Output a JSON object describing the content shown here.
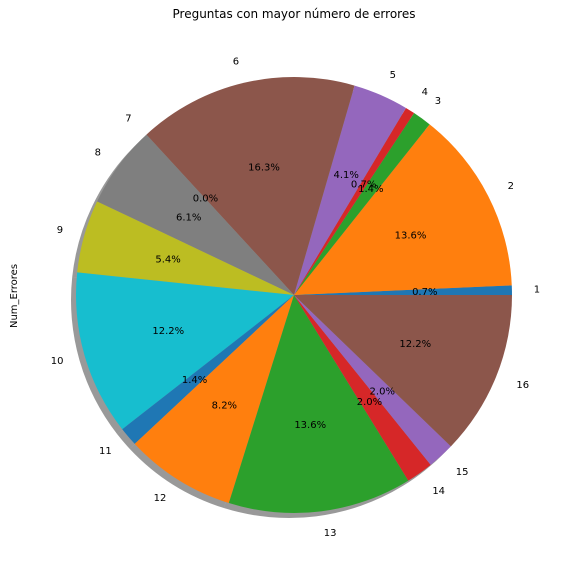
{
  "chart_data": {
    "type": "pie",
    "title": "Preguntas con mayor número de errores",
    "ylabel": "Num_Errores",
    "categories": [
      "1",
      "2",
      "3",
      "4",
      "5",
      "6",
      "7",
      "8",
      "9",
      "10",
      "11",
      "12",
      "13",
      "14",
      "15",
      "16"
    ],
    "values": [
      0.7,
      13.6,
      1.4,
      0.7,
      4.1,
      16.3,
      0.0,
      6.1,
      5.4,
      12.2,
      1.4,
      8.2,
      13.6,
      2.0,
      2.0,
      12.2
    ],
    "pct_labels": [
      "0.7%",
      "13.6%",
      "1.4%",
      "0.7%",
      "4.1%",
      "16.3%",
      "0.0%",
      "6.1%",
      "5.4%",
      "12.2%",
      "1.4%",
      "8.2%",
      "13.6%",
      "2.0%",
      "2.0%",
      "12.2%"
    ],
    "colors": [
      "#1f77b4",
      "#ff7f0e",
      "#2ca02c",
      "#d62728",
      "#9467bd",
      "#8c564b",
      "#e377c2",
      "#7f7f7f",
      "#bcbd22",
      "#17becf",
      "#1f77b4",
      "#ff7f0e",
      "#2ca02c",
      "#d62728",
      "#9467bd",
      "#8c564b"
    ],
    "start_angle_deg": 0,
    "direction": "counterclockwise",
    "shadow": true,
    "legend": "none"
  }
}
